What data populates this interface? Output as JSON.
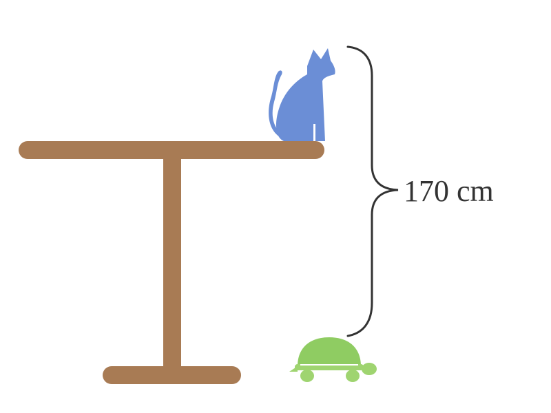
{
  "measurement": {
    "label": "170 cm"
  },
  "icons": {
    "cat": "cat-icon",
    "turtle": "turtle-icon",
    "table": "table-icon"
  },
  "colors": {
    "table": "#a87b54",
    "cat": "#6b8ed6",
    "turtle_shell": "#8fcc62",
    "turtle_body": "#9fd470",
    "turtle_line": "#ffffff",
    "brace": "#333333",
    "text": "#333333"
  }
}
